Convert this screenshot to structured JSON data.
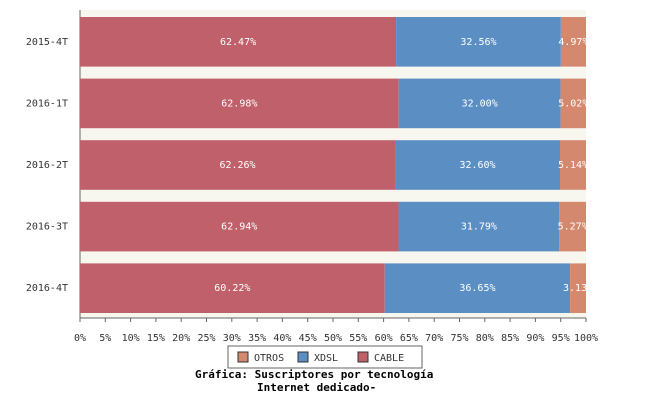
{
  "chart_data": {
    "type": "stacked-barh",
    "title_lines": [
      "Gráfica: Suscriptores por tecnología",
      "Internet dedicado-"
    ],
    "categories": [
      "2015-4T",
      "2016-1T",
      "2016-2T",
      "2016-3T",
      "2016-4T"
    ],
    "series": [
      {
        "name": "CABLE",
        "color": "#c0606a",
        "values": [
          62.47,
          62.98,
          62.26,
          62.94,
          60.22
        ],
        "value_labels": [
          "62.47%",
          "62.98%",
          "62.26%",
          "62.94%",
          "60.22%"
        ]
      },
      {
        "name": "XDSL",
        "color": "#5b8fc4",
        "values": [
          32.56,
          32.0,
          32.6,
          31.79,
          36.65
        ],
        "value_labels": [
          "32.56%",
          "32.00%",
          "32.60%",
          "31.79%",
          "36.65%"
        ]
      },
      {
        "name": "OTROS",
        "color": "#d4886e",
        "values": [
          4.97,
          5.02,
          5.14,
          5.27,
          3.13
        ],
        "value_labels": [
          "4.97%",
          "5.02%",
          "5.14%",
          "5.27%",
          "3.13%"
        ]
      }
    ],
    "xlim": [
      0,
      100
    ],
    "xticks": [
      {
        "value": 0,
        "label": "0%"
      },
      {
        "value": 5,
        "label": "5%"
      },
      {
        "value": 10,
        "label": "10%"
      },
      {
        "value": 15,
        "label": "15%"
      },
      {
        "value": 20,
        "label": "20%"
      },
      {
        "value": 25,
        "label": "25%"
      },
      {
        "value": 30,
        "label": "30%"
      },
      {
        "value": 35,
        "label": "35%"
      },
      {
        "value": 40,
        "label": "40%"
      },
      {
        "value": 45,
        "label": "45%"
      },
      {
        "value": 50,
        "label": "50%"
      },
      {
        "value": 55,
        "label": "55%"
      },
      {
        "value": 60,
        "label": "60%"
      },
      {
        "value": 65,
        "label": "65%"
      },
      {
        "value": 70,
        "label": "70%"
      },
      {
        "value": 75,
        "label": "75%"
      },
      {
        "value": 80,
        "label": "80%"
      },
      {
        "value": 85,
        "label": "85%"
      },
      {
        "value": 90,
        "label": "90%"
      },
      {
        "value": 95,
        "label": "95%"
      },
      {
        "value": 100,
        "label": "100%"
      }
    ]
  }
}
